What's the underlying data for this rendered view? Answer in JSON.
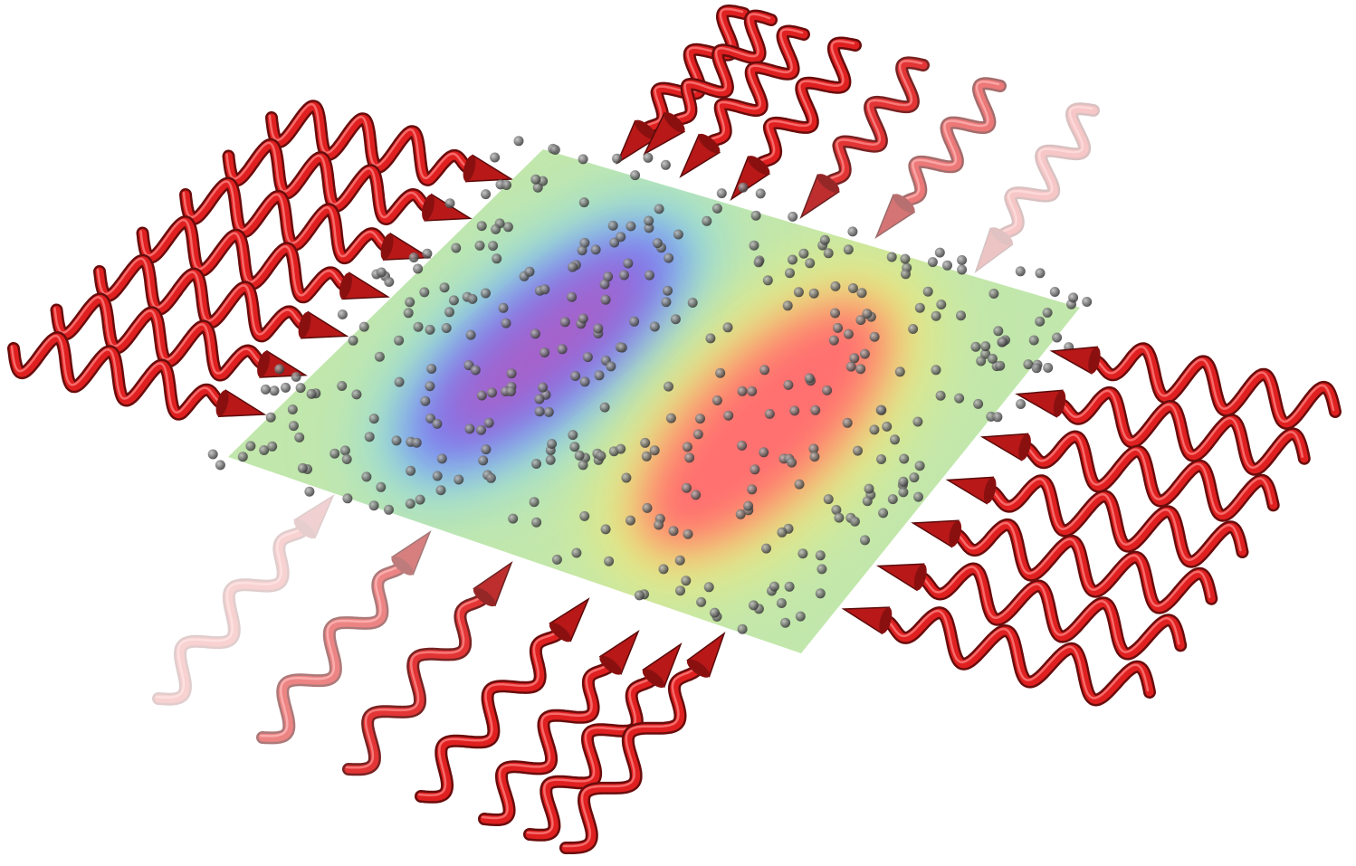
{
  "colors": {
    "background": "#ffffff",
    "plane_base": "#bfe6a8",
    "field_low": "#8a5cd6",
    "field_mid": "#f2ee7a",
    "field_high": "#ff6b6b",
    "wave": "#e02020",
    "particle": "#555555"
  }
}
